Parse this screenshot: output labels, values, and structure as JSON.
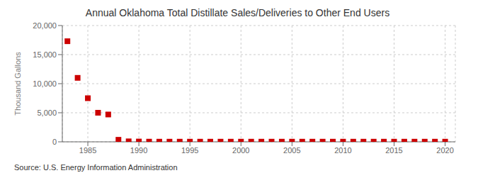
{
  "chart_data": {
    "type": "scatter",
    "title": "Annual Oklahoma Total Distillate Sales/Deliveries to Other End Users",
    "ylabel": "Thousand Gallons",
    "annotations": [
      "Source: U.S. Energy Information Administration"
    ],
    "x": [
      1983,
      1984,
      1985,
      1986,
      1987,
      1988,
      1989,
      1990,
      1991,
      1992,
      1993,
      1994,
      1995,
      1996,
      1997,
      1998,
      1999,
      2000,
      2001,
      2002,
      2003,
      2004,
      2005,
      2006,
      2007,
      2008,
      2009,
      2010,
      2011,
      2012,
      2013,
      2014,
      2015,
      2016,
      2017,
      2018,
      2019,
      2020
    ],
    "values": [
      17300,
      11000,
      7500,
      5000,
      4700,
      350,
      80,
      50,
      30,
      25,
      25,
      25,
      25,
      25,
      25,
      25,
      25,
      25,
      25,
      25,
      25,
      25,
      25,
      25,
      25,
      25,
      25,
      25,
      25,
      25,
      25,
      25,
      25,
      25,
      25,
      25,
      25,
      25
    ],
    "color": "#cc0000",
    "marker": "square",
    "xlim": [
      1982.5,
      2021
    ],
    "ylim": [
      0,
      20000
    ],
    "xticks": [
      1985,
      1990,
      1995,
      2000,
      2005,
      2010,
      2015,
      2020
    ],
    "yticks": [
      0,
      {
        "value": 5000,
        "label": "5,000"
      },
      {
        "value": 10000,
        "label": "10,000"
      },
      {
        "value": 15000,
        "label": "15,000"
      },
      {
        "value": 20000,
        "label": "20,000"
      }
    ],
    "grid": true
  }
}
